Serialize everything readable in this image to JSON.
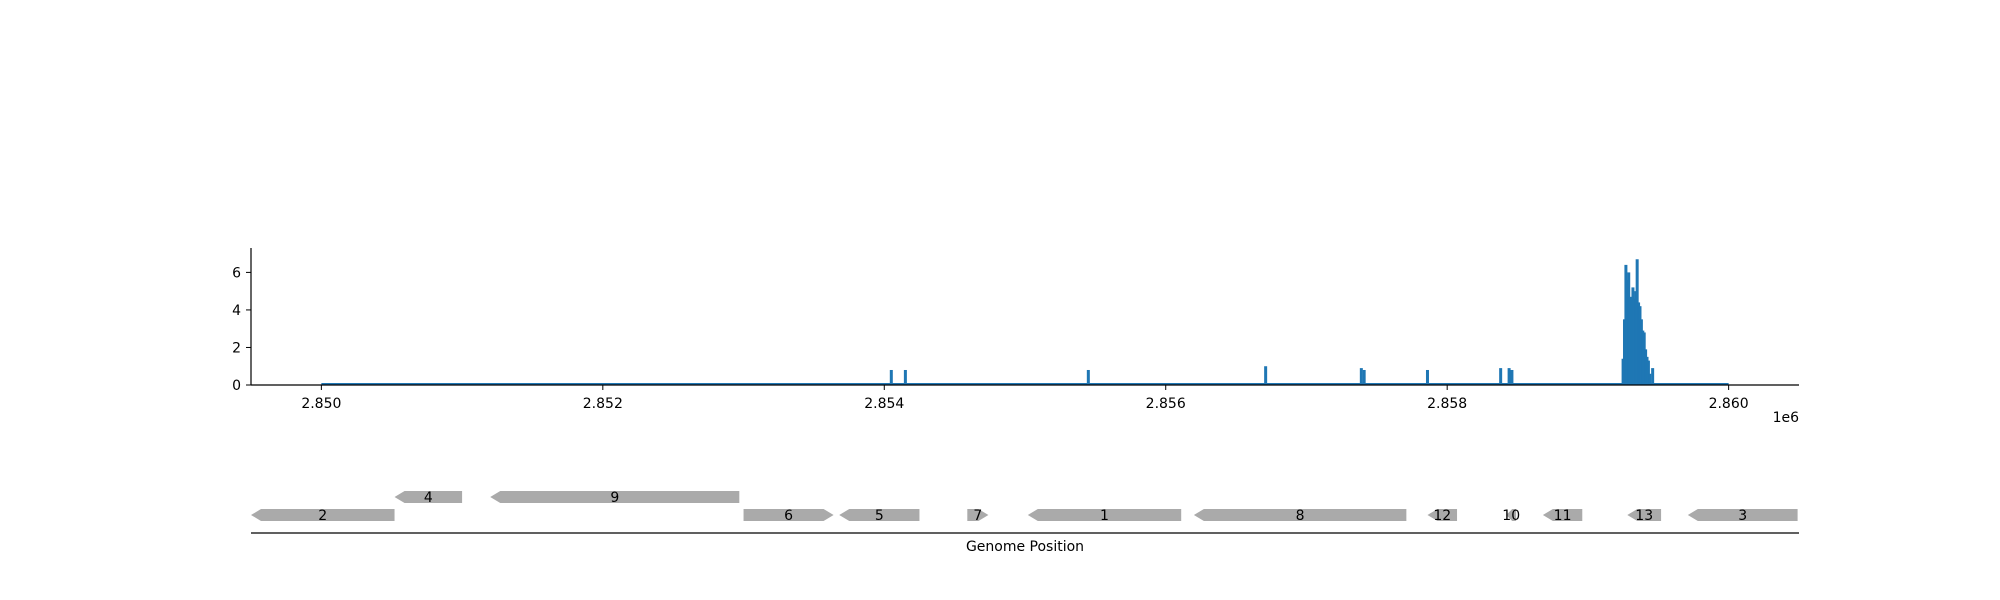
{
  "chart_data": [
    {
      "type": "bar",
      "title": "",
      "xlabel": "",
      "ylabel": "",
      "x_offset_label": "1e6",
      "xlim": [
        2.8495,
        2.8605
      ],
      "ylim": [
        0,
        7.3
      ],
      "x_ticks": [
        2.85,
        2.852,
        2.854,
        2.856,
        2.858,
        2.86
      ],
      "x_tick_labels": [
        "2.850",
        "2.852",
        "2.854",
        "2.856",
        "2.858",
        "2.860"
      ],
      "y_ticks": [
        0,
        2,
        4,
        6
      ],
      "y_tick_labels": [
        "0",
        "2",
        "4",
        "6"
      ],
      "baseline": {
        "x_start": 2.85,
        "x_end": 2.86
      },
      "color": "#1f77b4",
      "grid": false,
      "x": [
        2.85405,
        2.85415,
        2.85545,
        2.85671,
        2.85739,
        2.85741,
        2.85786,
        2.85838,
        2.85844,
        2.85846,
        2.85925,
        2.85926,
        2.85927,
        2.85928,
        2.85929,
        2.8593,
        2.85931,
        2.85932,
        2.85933,
        2.85934,
        2.85935,
        2.85936,
        2.85937,
        2.85938,
        2.85939,
        2.8594,
        2.85941,
        2.85942,
        2.85943,
        2.85944,
        2.85946
      ],
      "values": [
        0.8,
        0.8,
        0.8,
        1.0,
        0.9,
        0.8,
        0.8,
        0.9,
        0.9,
        0.8,
        1.4,
        3.5,
        6.4,
        5.6,
        6.0,
        4.7,
        4.6,
        5.2,
        4.6,
        5.0,
        6.7,
        4.4,
        4.2,
        3.5,
        2.9,
        2.8,
        1.9,
        1.5,
        1.3,
        0.6,
        0.9
      ]
    },
    {
      "type": "gene-track",
      "xlabel": "Genome Position",
      "xlim": [
        2.8495,
        2.8605
      ],
      "color": "#aaaaaa",
      "genes": [
        {
          "label": "2",
          "start": 2.84945,
          "end": 2.85052,
          "strand": "-",
          "row": 0
        },
        {
          "label": "4",
          "start": 2.85052,
          "end": 2.851,
          "strand": "-",
          "row": 1
        },
        {
          "label": "9",
          "start": 2.8512,
          "end": 2.85297,
          "strand": "-",
          "row": 1
        },
        {
          "label": "6",
          "start": 2.853,
          "end": 2.85364,
          "strand": "+",
          "row": 0
        },
        {
          "label": "5",
          "start": 2.85368,
          "end": 2.85425,
          "strand": "-",
          "row": 0
        },
        {
          "label": "7",
          "start": 2.85459,
          "end": 2.85474,
          "strand": "+",
          "row": 0
        },
        {
          "label": "1",
          "start": 2.85502,
          "end": 2.85611,
          "strand": "-",
          "row": 0
        },
        {
          "label": "8",
          "start": 2.8562,
          "end": 2.85771,
          "strand": "-",
          "row": 0
        },
        {
          "label": "12",
          "start": 2.85786,
          "end": 2.85807,
          "strand": "-",
          "row": 0
        },
        {
          "label": "10",
          "start": 2.85842,
          "end": 2.85849,
          "strand": "-",
          "row": 0
        },
        {
          "label": "11",
          "start": 2.85868,
          "end": 2.85896,
          "strand": "-",
          "row": 0
        },
        {
          "label": "13",
          "start": 2.85928,
          "end": 2.85952,
          "strand": "-",
          "row": 0
        },
        {
          "label": "3",
          "start": 2.85971,
          "end": 2.86049,
          "strand": "-",
          "row": 0
        }
      ]
    }
  ]
}
